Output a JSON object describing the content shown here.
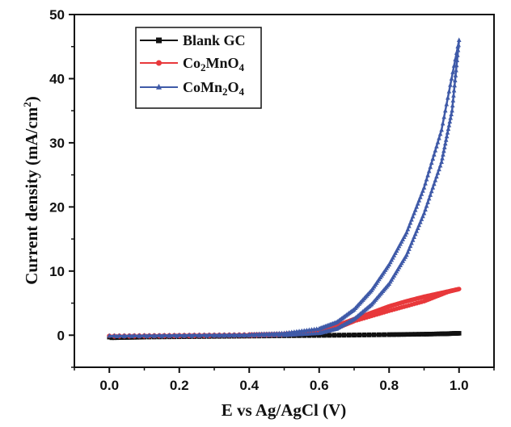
{
  "chart_data": {
    "type": "line",
    "xlabel": "E vs Ag/AgCl (V)",
    "ylabel_main": "Current density (mA/cm",
    "ylabel_sup": "2",
    "ylabel_end": ")",
    "xlim": [
      -0.1,
      1.1
    ],
    "ylim": [
      -5,
      50
    ],
    "xticks": [
      0.0,
      0.2,
      0.4,
      0.6,
      0.8,
      1.0
    ],
    "xtick_labels": [
      "0.0",
      "0.2",
      "0.4",
      "0.6",
      "0.8",
      "1.0"
    ],
    "yticks": [
      0,
      10,
      20,
      30,
      40,
      50
    ],
    "ytick_labels": [
      "0",
      "10",
      "20",
      "30",
      "40",
      "50"
    ],
    "legend_position": "top-left",
    "grid": false,
    "series": [
      {
        "name": "Blank GC",
        "legend_parts": [
          [
            "Blank GC",
            false
          ]
        ],
        "color": "#111111",
        "marker": "square",
        "forward": [
          [
            0.0,
            -0.3
          ],
          [
            0.2,
            -0.15
          ],
          [
            0.4,
            -0.05
          ],
          [
            0.6,
            0.0
          ],
          [
            0.8,
            0.1
          ],
          [
            0.95,
            0.2
          ],
          [
            1.0,
            0.3
          ]
        ],
        "backward": [
          [
            1.0,
            0.3
          ],
          [
            0.9,
            0.15
          ],
          [
            0.7,
            0.0
          ],
          [
            0.5,
            -0.1
          ],
          [
            0.3,
            -0.2
          ],
          [
            0.1,
            -0.3
          ],
          [
            0.0,
            -0.4
          ]
        ]
      },
      {
        "name": "Co2MnO4",
        "legend_parts": [
          [
            "Co",
            false
          ],
          [
            "2",
            true
          ],
          [
            "MnO",
            false
          ],
          [
            "4",
            true
          ]
        ],
        "color": "#e8383b",
        "marker": "circle",
        "forward": [
          [
            0.0,
            -0.1
          ],
          [
            0.2,
            0.0
          ],
          [
            0.4,
            0.1
          ],
          [
            0.5,
            0.2
          ],
          [
            0.55,
            0.4
          ],
          [
            0.6,
            0.8
          ],
          [
            0.65,
            1.5
          ],
          [
            0.7,
            2.5
          ],
          [
            0.75,
            3.5
          ],
          [
            0.8,
            4.5
          ],
          [
            0.85,
            5.3
          ],
          [
            0.9,
            6.0
          ],
          [
            0.95,
            6.6
          ],
          [
            1.0,
            7.2
          ]
        ],
        "backward": [
          [
            1.0,
            7.2
          ],
          [
            0.97,
            6.8
          ],
          [
            0.9,
            5.3
          ],
          [
            0.8,
            3.8
          ],
          [
            0.7,
            2.2
          ],
          [
            0.65,
            1.1
          ],
          [
            0.6,
            0.4
          ],
          [
            0.5,
            0.05
          ],
          [
            0.4,
            -0.05
          ],
          [
            0.2,
            -0.15
          ],
          [
            0.0,
            -0.2
          ]
        ]
      },
      {
        "name": "CoMn2O4",
        "legend_parts": [
          [
            "CoMn",
            false
          ],
          [
            "2",
            true
          ],
          [
            "O",
            false
          ],
          [
            "4",
            true
          ]
        ],
        "color": "#3f5aa8",
        "marker": "triangle",
        "forward": [
          [
            0.0,
            -0.1
          ],
          [
            0.2,
            0.0
          ],
          [
            0.4,
            0.1
          ],
          [
            0.5,
            0.3
          ],
          [
            0.6,
            1.0
          ],
          [
            0.65,
            2.0
          ],
          [
            0.7,
            4.0
          ],
          [
            0.75,
            7.0
          ],
          [
            0.8,
            11.0
          ],
          [
            0.85,
            16.0
          ],
          [
            0.9,
            23.0
          ],
          [
            0.95,
            32.0
          ],
          [
            1.0,
            46.0
          ]
        ],
        "backward": [
          [
            1.0,
            46.0
          ],
          [
            0.98,
            35.0
          ],
          [
            0.95,
            27.0
          ],
          [
            0.9,
            19.0
          ],
          [
            0.85,
            12.5
          ],
          [
            0.8,
            8.0
          ],
          [
            0.75,
            4.8
          ],
          [
            0.7,
            2.5
          ],
          [
            0.65,
            1.0
          ],
          [
            0.6,
            0.3
          ],
          [
            0.5,
            0.0
          ],
          [
            0.3,
            -0.1
          ],
          [
            0.0,
            -0.2
          ]
        ]
      }
    ]
  }
}
